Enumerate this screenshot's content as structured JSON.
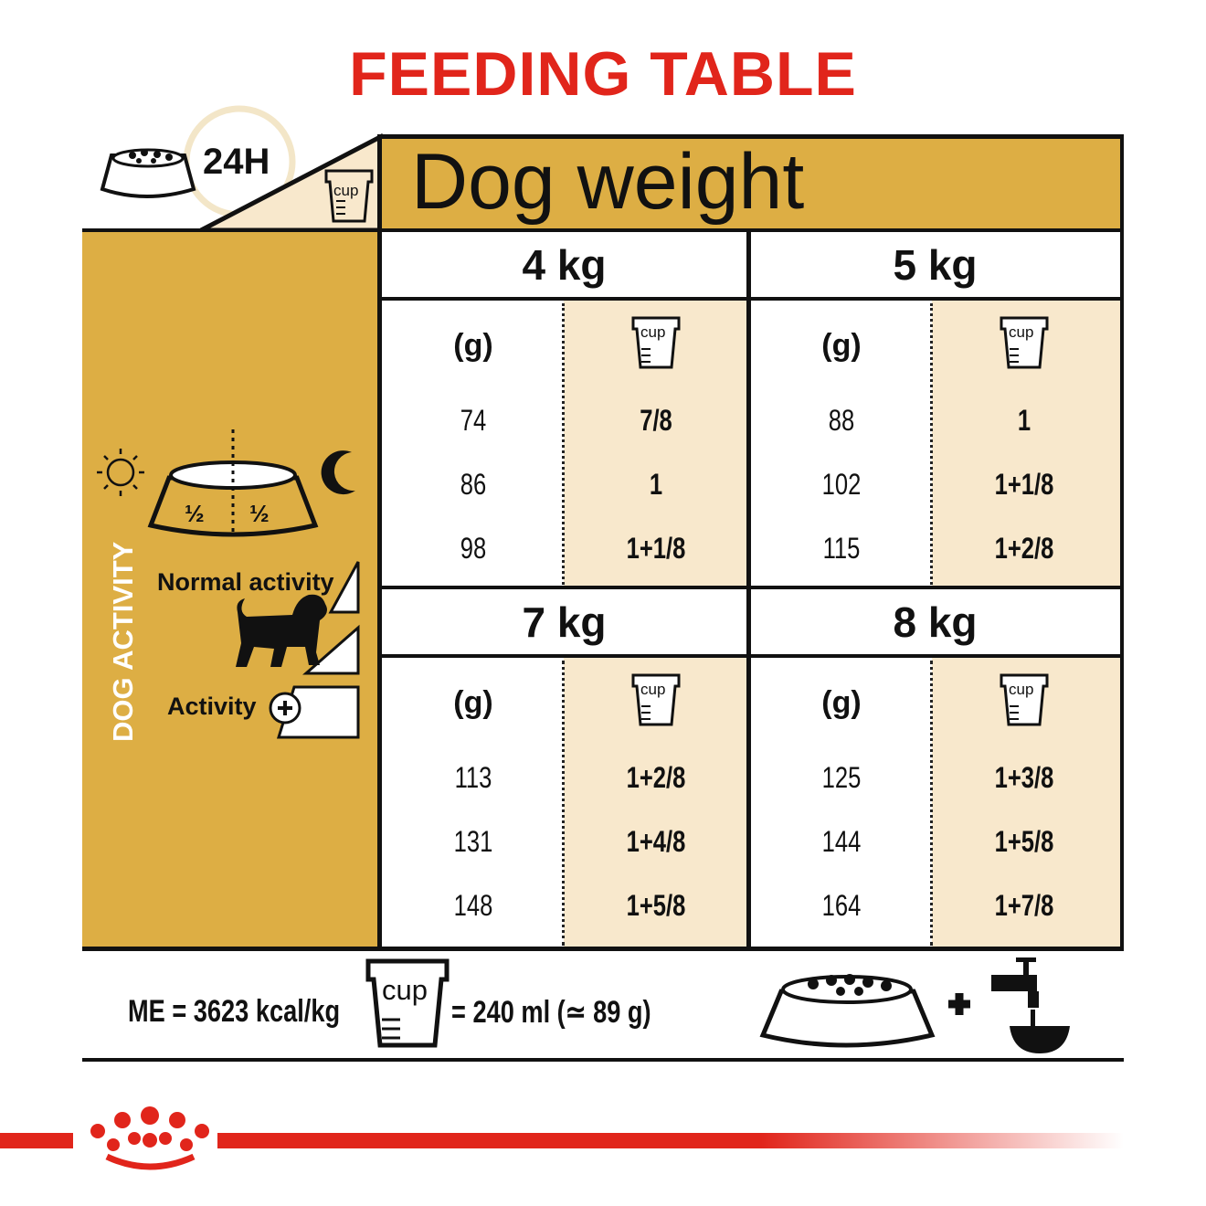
{
  "title": "FEEDING TABLE",
  "corner": {
    "duration": "24H",
    "cup_label": "cup"
  },
  "header": {
    "dog_weight": "Dog weight"
  },
  "activity": {
    "side_label": "DOG ACTIVITY",
    "half_left": "½",
    "half_right": "½",
    "normal": "Normal activity",
    "active": "Activity"
  },
  "columns": {
    "grams": "(g)",
    "cup": "cup"
  },
  "blocks": [
    {
      "weight": "4 kg",
      "rows": [
        {
          "g": "74",
          "cup": "7/8"
        },
        {
          "g": "86",
          "cup": "1"
        },
        {
          "g": "98",
          "cup": "1+1/8"
        }
      ]
    },
    {
      "weight": "5 kg",
      "rows": [
        {
          "g": "88",
          "cup": "1"
        },
        {
          "g": "102",
          "cup": "1+1/8"
        },
        {
          "g": "115",
          "cup": "1+2/8"
        }
      ]
    },
    {
      "weight": "7 kg",
      "rows": [
        {
          "g": "113",
          "cup": "1+2/8"
        },
        {
          "g": "131",
          "cup": "1+4/8"
        },
        {
          "g": "148",
          "cup": "1+5/8"
        }
      ]
    },
    {
      "weight": "8 kg",
      "rows": [
        {
          "g": "125",
          "cup": "1+3/8"
        },
        {
          "g": "144",
          "cup": "1+5/8"
        },
        {
          "g": "164",
          "cup": "1+7/8"
        }
      ]
    }
  ],
  "footer": {
    "energy": "ME = 3623 kcal/kg",
    "cup_label": "cup",
    "cup_equiv": "= 240 ml (≃ 89 g)",
    "plus": "+"
  },
  "colors": {
    "accent_red": "#e1251b",
    "gold": "#ddae44",
    "cream": "#f8e8cc"
  }
}
